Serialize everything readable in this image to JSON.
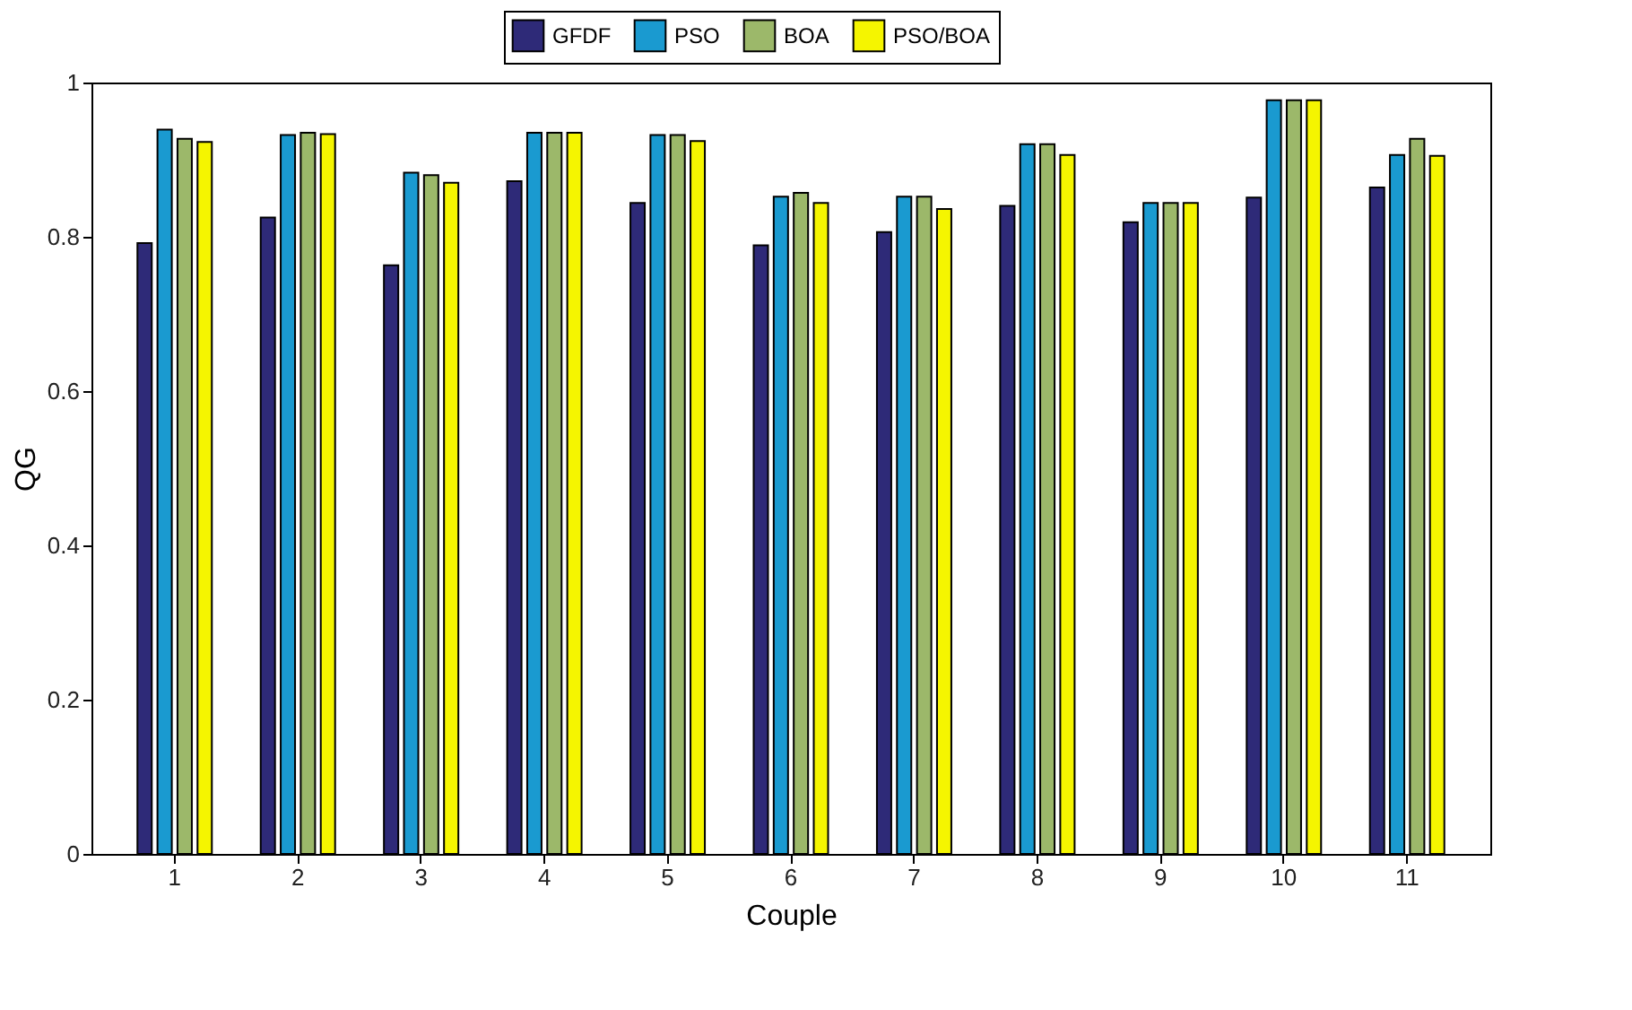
{
  "chart_data": {
    "type": "bar",
    "xlabel": "Couple",
    "ylabel": "QG",
    "categories": [
      "1",
      "2",
      "3",
      "4",
      "5",
      "6",
      "7",
      "8",
      "9",
      "10",
      "11"
    ],
    "series": [
      {
        "name": "GFDF",
        "color": "#2e2a78",
        "values": [
          0.792,
          0.825,
          0.763,
          0.872,
          0.844,
          0.789,
          0.806,
          0.84,
          0.819,
          0.851,
          0.864
        ]
      },
      {
        "name": "PSO",
        "color": "#1a9ad0",
        "values": [
          0.939,
          0.932,
          0.883,
          0.935,
          0.932,
          0.852,
          0.852,
          0.92,
          0.844,
          0.977,
          0.906
        ]
      },
      {
        "name": "BOA",
        "color": "#9cb86a",
        "values": [
          0.927,
          0.935,
          0.88,
          0.935,
          0.932,
          0.857,
          0.852,
          0.92,
          0.844,
          0.977,
          0.927
        ]
      },
      {
        "name": "PSO/BOA",
        "color": "#f5f500",
        "values": [
          0.923,
          0.933,
          0.87,
          0.935,
          0.924,
          0.844,
          0.836,
          0.906,
          0.844,
          0.977,
          0.905
        ]
      }
    ],
    "ylim": [
      0,
      1
    ],
    "yticks": [
      0,
      0.2,
      0.4,
      0.6,
      0.8,
      1
    ],
    "grid": false,
    "legend": "top"
  }
}
